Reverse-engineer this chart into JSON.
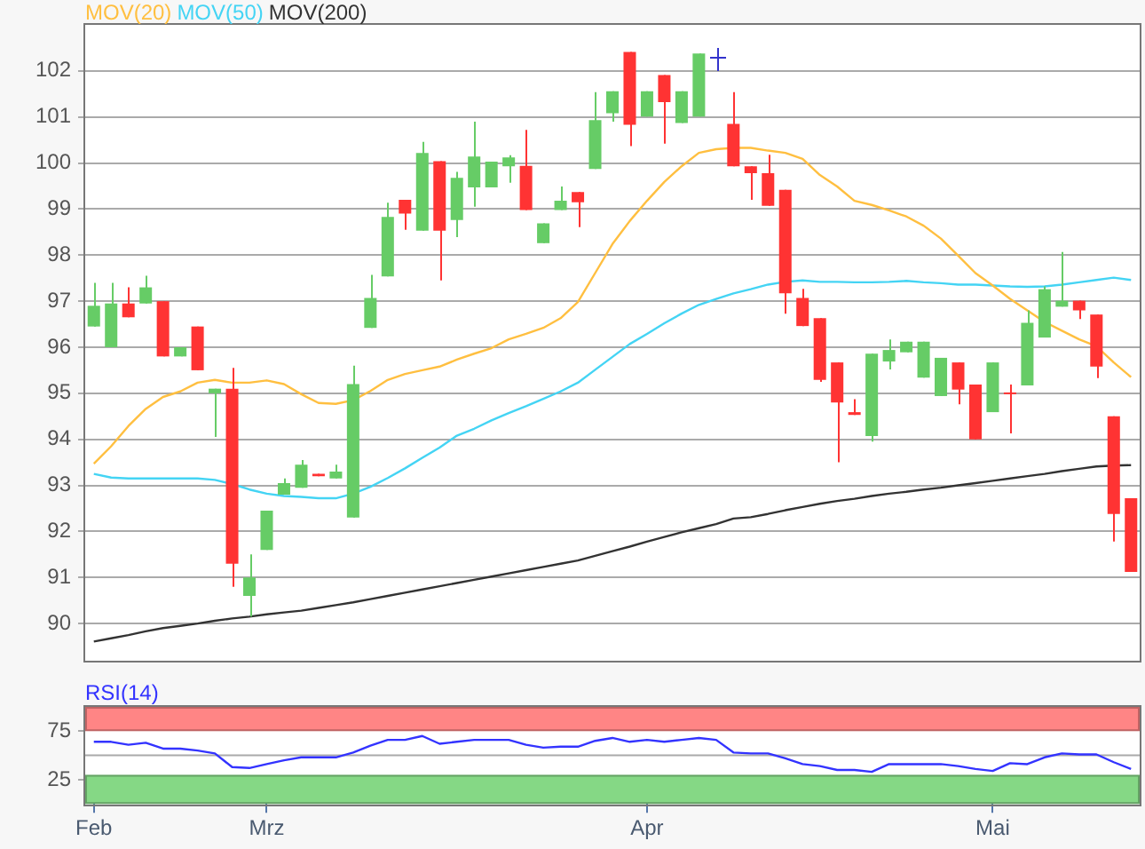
{
  "chart_data": [
    {
      "type": "candlestick",
      "ohlc": [
        [
          96.45,
          97.4,
          96.45,
          96.9
        ],
        [
          96.0,
          97.4,
          96.0,
          96.95
        ],
        [
          96.95,
          97.3,
          96.65,
          96.65
        ],
        [
          96.95,
          97.55,
          96.95,
          97.3
        ],
        [
          97.0,
          97.0,
          95.8,
          95.8
        ],
        [
          95.8,
          96.0,
          95.8,
          96.0
        ],
        [
          96.45,
          96.45,
          95.5,
          95.5
        ],
        [
          95.0,
          95.1,
          94.05,
          95.1
        ],
        [
          95.1,
          95.55,
          90.8,
          91.3
        ],
        [
          90.6,
          91.5,
          90.15,
          91.0
        ],
        [
          91.6,
          92.45,
          91.6,
          92.45
        ],
        [
          92.8,
          93.15,
          92.8,
          93.05
        ],
        [
          92.95,
          93.55,
          92.95,
          93.45
        ],
        [
          93.25,
          93.25,
          93.2,
          93.2
        ],
        [
          93.15,
          93.45,
          93.15,
          93.3
        ],
        [
          92.3,
          95.6,
          92.3,
          95.2
        ],
        [
          96.42,
          97.57,
          96.42,
          97.07
        ],
        [
          97.54,
          99.14,
          97.54,
          98.83
        ],
        [
          99.2,
          99.2,
          98.55,
          98.9
        ],
        [
          98.53,
          100.46,
          98.53,
          100.22
        ],
        [
          100.04,
          100.04,
          97.45,
          98.53
        ],
        [
          98.76,
          99.81,
          98.39,
          99.68
        ],
        [
          99.47,
          100.9,
          99.05,
          100.14
        ],
        [
          99.47,
          100.03,
          99.47,
          100.03
        ],
        [
          99.93,
          100.17,
          99.57,
          100.12
        ],
        [
          99.94,
          100.72,
          98.98,
          98.98
        ],
        [
          98.26,
          98.69,
          98.26,
          98.69
        ],
        [
          98.98,
          99.49,
          98.98,
          99.18
        ],
        [
          99.37,
          99.37,
          98.61,
          99.15
        ],
        [
          99.87,
          101.54,
          99.87,
          100.93
        ],
        [
          101.08,
          101.56,
          100.9,
          101.56
        ],
        [
          102.41,
          102.41,
          100.37,
          100.83
        ],
        [
          101.01,
          101.56,
          101.01,
          101.56
        ],
        [
          101.91,
          101.91,
          100.42,
          101.32
        ],
        [
          100.87,
          101.56,
          100.87,
          101.56
        ],
        [
          101.01,
          102.38,
          101.01,
          102.38
        ],
        null,
        [
          100.85,
          101.54,
          99.93,
          99.93
        ],
        [
          99.93,
          99.93,
          99.2,
          99.78
        ],
        [
          99.78,
          100.18,
          99.07,
          99.07
        ],
        [
          99.42,
          99.42,
          96.73,
          97.17
        ],
        [
          97.07,
          97.27,
          96.46,
          96.46
        ],
        [
          96.63,
          96.63,
          95.25,
          95.29
        ],
        [
          95.67,
          95.67,
          93.5,
          94.8
        ],
        [
          94.59,
          94.87,
          94.53,
          94.53
        ],
        [
          94.07,
          95.86,
          93.95,
          95.86
        ],
        [
          95.69,
          96.17,
          95.52,
          95.94
        ],
        [
          95.89,
          96.12,
          95.89,
          96.12
        ],
        [
          95.34,
          96.12,
          95.34,
          96.12
        ],
        [
          94.94,
          95.77,
          94.94,
          95.77
        ],
        [
          95.67,
          95.67,
          94.76,
          95.08
        ],
        [
          95.19,
          95.19,
          94.0,
          94.0
        ],
        [
          94.59,
          95.67,
          94.59,
          95.67
        ],
        [
          95.0,
          95.19,
          94.13,
          94.98
        ],
        [
          95.17,
          96.8,
          95.17,
          96.53
        ],
        [
          96.21,
          97.32,
          96.21,
          97.26
        ],
        [
          96.88,
          98.07,
          96.88,
          97.01
        ],
        [
          97.01,
          97.01,
          96.61,
          96.8
        ],
        [
          96.71,
          96.71,
          95.33,
          95.58
        ],
        [
          94.5,
          94.5,
          91.78,
          92.38
        ],
        [
          92.72,
          92.72,
          91.12,
          91.12
        ]
      ],
      "series": [
        {
          "name": "MOV(20)",
          "type": "line",
          "color": "#ffbf40",
          "values": [
            93.47,
            93.85,
            94.29,
            94.66,
            94.92,
            95.04,
            95.23,
            95.29,
            95.23,
            95.23,
            95.28,
            95.2,
            94.98,
            94.79,
            94.77,
            94.85,
            95.05,
            95.29,
            95.42,
            95.5,
            95.58,
            95.73,
            95.86,
            95.98,
            96.17,
            96.29,
            96.42,
            96.63,
            96.98,
            97.61,
            98.24,
            98.74,
            99.18,
            99.59,
            99.93,
            100.22,
            100.3,
            100.33,
            100.33,
            100.27,
            100.22,
            100.09,
            99.74,
            99.49,
            99.18,
            99.09,
            98.97,
            98.84,
            98.64,
            98.36,
            97.99,
            97.61,
            97.34,
            97.05,
            96.8,
            96.55,
            96.36,
            96.17,
            96.02,
            95.67,
            95.35
          ]
        },
        {
          "name": "MOV(50)",
          "type": "line",
          "color": "#44d4f4",
          "values": [
            93.25,
            93.17,
            93.15,
            93.15,
            93.15,
            93.15,
            93.15,
            93.12,
            93.03,
            92.91,
            92.82,
            92.77,
            92.75,
            92.72,
            92.72,
            92.82,
            92.97,
            93.16,
            93.37,
            93.6,
            93.82,
            94.08,
            94.23,
            94.41,
            94.57,
            94.72,
            94.88,
            95.04,
            95.23,
            95.51,
            95.79,
            96.07,
            96.29,
            96.52,
            96.73,
            96.92,
            97.05,
            97.17,
            97.26,
            97.36,
            97.42,
            97.45,
            97.42,
            97.42,
            97.41,
            97.41,
            97.42,
            97.44,
            97.41,
            97.39,
            97.36,
            97.36,
            97.34,
            97.32,
            97.31,
            97.32,
            97.36,
            97.41,
            97.46,
            97.51,
            97.46
          ]
        },
        {
          "name": "MOV(200)",
          "type": "line",
          "color": "#333333",
          "values": [
            89.61,
            89.68,
            89.75,
            89.83,
            89.9,
            89.95,
            90.0,
            90.06,
            90.11,
            90.15,
            90.2,
            90.24,
            90.28,
            90.34,
            90.4,
            90.46,
            90.53,
            90.6,
            90.67,
            90.74,
            90.81,
            90.88,
            90.95,
            91.02,
            91.09,
            91.16,
            91.23,
            91.3,
            91.37,
            91.47,
            91.57,
            91.67,
            91.78,
            91.88,
            91.98,
            92.07,
            92.16,
            92.28,
            92.31,
            92.38,
            92.46,
            92.53,
            92.6,
            92.66,
            92.71,
            92.77,
            92.82,
            92.86,
            92.91,
            92.95,
            93.0,
            93.05,
            93.1,
            93.15,
            93.2,
            93.25,
            93.31,
            93.36,
            93.41,
            93.43,
            93.44
          ]
        }
      ],
      "ylim": [
        89.2,
        103
      ],
      "yticks": [
        90,
        91,
        92,
        93,
        94,
        95,
        96,
        97,
        98,
        99,
        100,
        101,
        102
      ],
      "grid": "y",
      "legend": "top left",
      "tick_labels": "y"
    },
    {
      "type": "line",
      "categories": [
        "Feb",
        null,
        null,
        null,
        null,
        null,
        null,
        null,
        null,
        null,
        "Mrz",
        null,
        null,
        null,
        null,
        null,
        null,
        null,
        null,
        null,
        null,
        null,
        null,
        null,
        null,
        null,
        null,
        null,
        null,
        null,
        null,
        null,
        "Apr",
        null,
        null,
        null,
        null,
        null,
        null,
        null,
        null,
        null,
        null,
        null,
        null,
        null,
        null,
        null,
        null,
        null,
        null,
        null,
        "Mai",
        null,
        null,
        null,
        null,
        null,
        null,
        null,
        null
      ],
      "series": [
        {
          "name": "RSI(14)",
          "color": "#3333ff",
          "values": [
            64,
            64,
            61,
            63,
            57,
            57,
            55,
            52,
            38,
            37,
            41,
            45,
            48,
            48,
            48,
            53,
            60,
            66,
            66,
            70,
            62,
            64,
            66,
            66,
            66,
            61,
            58,
            59,
            59,
            65,
            68,
            64,
            66,
            64,
            66,
            68,
            66,
            53,
            52,
            52,
            47,
            41,
            39,
            35,
            35,
            33,
            41,
            41,
            41,
            41,
            39,
            36,
            34,
            42,
            41,
            48,
            52,
            51,
            51,
            43,
            36
          ]
        }
      ],
      "ylim": [
        0,
        100
      ],
      "yticks": [
        25,
        75
      ],
      "legend": "top left",
      "bands": [
        {
          "axis": "y",
          "from": 75,
          "to": 100,
          "color": "#ff8585"
        },
        {
          "axis": "y",
          "from": 0,
          "to": 30,
          "color": "#85d885"
        }
      ],
      "ref_lines": [
        {
          "axis": "y",
          "value": 50,
          "color": "#aaaaaa"
        }
      ]
    }
  ]
}
